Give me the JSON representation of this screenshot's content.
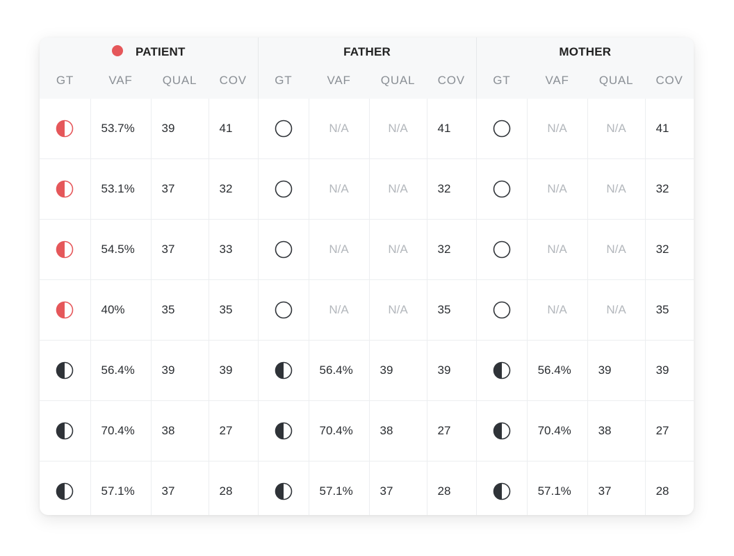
{
  "colors": {
    "patient_dot": "#e5575a",
    "het_affected": "#e5575a",
    "het_unaffected": "#2f3338",
    "hom_ref_stroke": "#2f3338",
    "na_text": "#b3b7bc"
  },
  "groups": [
    {
      "label": "PATIENT",
      "indicator": "red-dot"
    },
    {
      "label": "FATHER"
    },
    {
      "label": "MOTHER"
    }
  ],
  "columns": [
    "GT",
    "VAF",
    "QUAL",
    "COV",
    "GT",
    "VAF",
    "QUAL",
    "COV",
    "GT",
    "VAF",
    "QUAL",
    "COV"
  ],
  "rows": [
    {
      "patient": {
        "gt": "het-red",
        "vaf": "53.7%",
        "qual": "39",
        "cov": "41"
      },
      "father": {
        "gt": "hom-ref",
        "vaf": "N/A",
        "qual": "N/A",
        "cov": "41"
      },
      "mother": {
        "gt": "hom-ref",
        "vaf": "N/A",
        "qual": "N/A",
        "cov": "41"
      }
    },
    {
      "patient": {
        "gt": "het-red",
        "vaf": "53.1%",
        "qual": "37",
        "cov": "32"
      },
      "father": {
        "gt": "hom-ref",
        "vaf": "N/A",
        "qual": "N/A",
        "cov": "32"
      },
      "mother": {
        "gt": "hom-ref",
        "vaf": "N/A",
        "qual": "N/A",
        "cov": "32"
      }
    },
    {
      "patient": {
        "gt": "het-red",
        "vaf": "54.5%",
        "qual": "37",
        "cov": "33"
      },
      "father": {
        "gt": "hom-ref",
        "vaf": "N/A",
        "qual": "N/A",
        "cov": "32"
      },
      "mother": {
        "gt": "hom-ref",
        "vaf": "N/A",
        "qual": "N/A",
        "cov": "32"
      }
    },
    {
      "patient": {
        "gt": "het-red",
        "vaf": "40%",
        "qual": "35",
        "cov": "35"
      },
      "father": {
        "gt": "hom-ref",
        "vaf": "N/A",
        "qual": "N/A",
        "cov": "35"
      },
      "mother": {
        "gt": "hom-ref",
        "vaf": "N/A",
        "qual": "N/A",
        "cov": "35"
      }
    },
    {
      "patient": {
        "gt": "het-dark",
        "vaf": "56.4%",
        "qual": "39",
        "cov": "39"
      },
      "father": {
        "gt": "het-dark",
        "vaf": "56.4%",
        "qual": "39",
        "cov": "39"
      },
      "mother": {
        "gt": "het-dark",
        "vaf": "56.4%",
        "qual": "39",
        "cov": "39"
      }
    },
    {
      "patient": {
        "gt": "het-dark",
        "vaf": "70.4%",
        "qual": "38",
        "cov": "27"
      },
      "father": {
        "gt": "het-dark",
        "vaf": "70.4%",
        "qual": "38",
        "cov": "27"
      },
      "mother": {
        "gt": "het-dark",
        "vaf": "70.4%",
        "qual": "38",
        "cov": "27"
      }
    },
    {
      "patient": {
        "gt": "het-dark",
        "vaf": "57.1%",
        "qual": "37",
        "cov": "28"
      },
      "father": {
        "gt": "het-dark",
        "vaf": "57.1%",
        "qual": "37",
        "cov": "28"
      },
      "mother": {
        "gt": "het-dark",
        "vaf": "57.1%",
        "qual": "37",
        "cov": "28"
      }
    }
  ]
}
